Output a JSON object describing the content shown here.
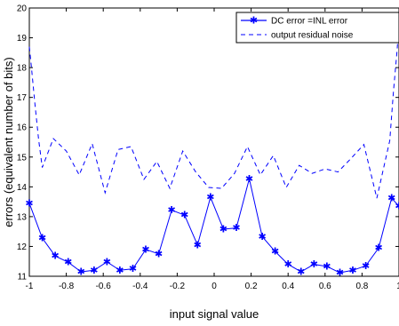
{
  "chart_data": {
    "type": "line",
    "title": "",
    "xlabel": "input signal value",
    "ylabel": "errors (equivalent number of bits)",
    "xlim": [
      -1,
      1
    ],
    "ylim": [
      11,
      20
    ],
    "xticks": [
      -1,
      -0.8,
      -0.6,
      -0.4,
      -0.2,
      0,
      0.2,
      0.4,
      0.6,
      0.8,
      1
    ],
    "xtick_labels": [
      "-1",
      "-0.8",
      "-0.6",
      "-0.4",
      "-0.2",
      "0",
      "0.2",
      "0.4",
      "0.6",
      "0.8",
      "1"
    ],
    "yticks": [
      11,
      12,
      13,
      14,
      15,
      16,
      17,
      18,
      19,
      20
    ],
    "ytick_labels": [
      "11",
      "12",
      "13",
      "14",
      "15",
      "16",
      "17",
      "18",
      "19",
      "20"
    ],
    "grid": false,
    "legend_position": "top-right",
    "series": [
      {
        "name": "DC error =INL error",
        "style": "solid-star",
        "color": "#0000ff",
        "x": [
          -1.0,
          -0.93,
          -0.86,
          -0.79,
          -0.72,
          -0.65,
          -0.58,
          -0.51,
          -0.44,
          -0.37,
          -0.3,
          -0.23,
          -0.16,
          -0.09,
          -0.02,
          0.05,
          0.12,
          0.19,
          0.26,
          0.33,
          0.4,
          0.47,
          0.54,
          0.61,
          0.68,
          0.75,
          0.82,
          0.89,
          0.96,
          1.0
        ],
        "y": [
          13.45,
          12.28,
          11.68,
          11.47,
          11.15,
          11.2,
          11.48,
          11.2,
          11.25,
          11.9,
          11.75,
          13.22,
          13.05,
          12.05,
          13.65,
          12.58,
          12.62,
          14.27,
          12.33,
          11.83,
          11.4,
          11.15,
          11.4,
          11.33,
          11.12,
          11.2,
          11.35,
          11.95,
          13.62,
          13.35
        ]
      },
      {
        "name": "output residual noise",
        "style": "dashed",
        "color": "#0000ff",
        "x": [
          -1.0,
          -0.99,
          -0.97,
          -0.95,
          -0.93,
          -0.87,
          -0.8,
          -0.73,
          -0.66,
          -0.59,
          -0.52,
          -0.45,
          -0.38,
          -0.31,
          -0.24,
          -0.17,
          -0.1,
          -0.03,
          0.04,
          0.11,
          0.18,
          0.25,
          0.32,
          0.39,
          0.46,
          0.53,
          0.6,
          0.67,
          0.74,
          0.81,
          0.88,
          0.95,
          0.97,
          0.99,
          1.0
        ],
        "y": [
          18.7,
          18.1,
          16.8,
          15.6,
          14.65,
          15.62,
          15.2,
          14.4,
          15.45,
          13.8,
          15.25,
          15.35,
          14.25,
          14.85,
          13.95,
          15.2,
          14.5,
          13.98,
          13.95,
          14.45,
          15.35,
          14.4,
          15.05,
          13.98,
          14.72,
          14.45,
          14.6,
          14.5,
          14.95,
          15.42,
          13.62,
          15.55,
          17.2,
          18.6,
          19.6
        ]
      }
    ]
  }
}
